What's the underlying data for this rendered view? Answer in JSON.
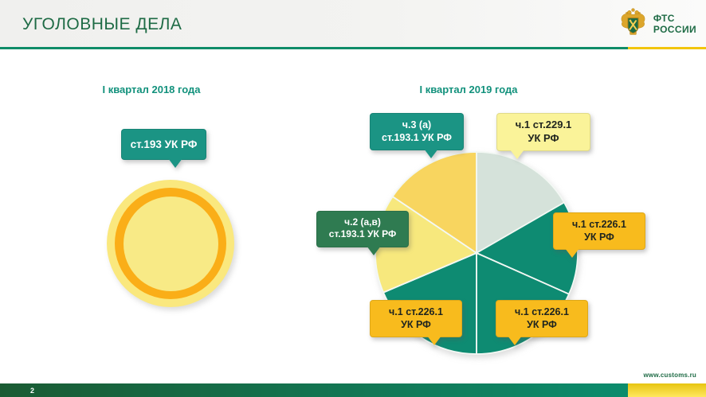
{
  "header": {
    "title": "УГОЛОВНЫЕ ДЕЛА",
    "logo": {
      "line1": "ФТС",
      "line2": "РОССИИ"
    }
  },
  "left_chart": {
    "title": "I квартал 2018 года",
    "callout": "ст.193 УК РФ"
  },
  "right_chart": {
    "title": "I квартал 2019 года",
    "callouts": {
      "c193_3": {
        "line1": "ч.3 (а)",
        "line2": "ст.193.1 УК РФ"
      },
      "c229_1": {
        "line1": "ч.1 ст.229.1",
        "line2": "УК РФ"
      },
      "c226_right": {
        "line1": "ч.1 ст.226.1",
        "line2": "УК РФ"
      },
      "c193_2": {
        "line1": "ч.2 (а,в)",
        "line2": "ст.193.1 УК РФ"
      },
      "c226_bottom_left": {
        "line1": "ч.1 ст.226.1",
        "line2": "УК РФ"
      },
      "c226_bottom_right": {
        "line1": "ч.1 ст.226.1",
        "line2": "УК РФ"
      }
    }
  },
  "footer": {
    "site": "www.customs.ru",
    "page": "2"
  },
  "colors": {
    "accent_green": "#1E6B45",
    "chart_title_teal": "#12917C",
    "header_line_green": "#0F8C68",
    "header_line_yellow": "#F2C50D",
    "callout_teal": "#1B9484",
    "callout_dark_green": "#2F7B51",
    "callout_orange": "#F8BB1D",
    "callout_pale_yellow": "#FAF399",
    "callout_dark_text": "#20251F",
    "footer_bar_green_left": "#1A5B33",
    "footer_bar_green_right": "#0C8C6D",
    "footer_bar_yellow": "#E7C511",
    "footer_bar_yellow_light": "#FFE75E",
    "disc_outer": "#FAE87E",
    "disc_ring": "#FAAE18",
    "disc_inner": "#F8EA86",
    "logo_gold": "#D9A62B"
  },
  "chart_data": [
    {
      "type": "pie",
      "title": "I квартал 2018 года",
      "style": "single-category disc with inner orange ring",
      "slices": [
        {
          "label": "ст.193 УК РФ",
          "share_pct": 100,
          "color": "#FAE87E",
          "ring_color": "#FAAE18"
        }
      ],
      "values_labeled": false,
      "legend_position": "callout"
    },
    {
      "type": "pie",
      "title": "I квартал 2019 года",
      "angle_reference": "degrees clockwise from 12 o'clock",
      "share_pct_estimated": true,
      "slices": [
        {
          "label": "ч.1 ст.229.1 УК РФ",
          "start_deg": 0,
          "end_deg": 60,
          "share_pct": 16.7,
          "color": "#D5E2DA"
        },
        {
          "label": "ч.1 ст.226.1 УК РФ",
          "start_deg": 60,
          "end_deg": 114,
          "share_pct": 15.0,
          "color": "#0E8B72"
        },
        {
          "label": "ч.1 ст.226.1 УК РФ",
          "start_deg": 114,
          "end_deg": 180,
          "share_pct": 18.3,
          "color": "#0E8B72"
        },
        {
          "label": "ч.1 ст.226.1 УК РФ",
          "start_deg": 180,
          "end_deg": 247,
          "share_pct": 18.6,
          "color": "#0E8B72"
        },
        {
          "label": "ч.2 (а,в) ст.193.1 УК РФ",
          "start_deg": 247,
          "end_deg": 304,
          "share_pct": 15.8,
          "color": "#F7E87D"
        },
        {
          "label": "ч.3 (а) ст.193.1 УК РФ",
          "start_deg": 304,
          "end_deg": 360,
          "share_pct": 15.6,
          "color": "#F8D55F"
        }
      ],
      "values_labeled": false,
      "legend_position": "callouts"
    }
  ]
}
